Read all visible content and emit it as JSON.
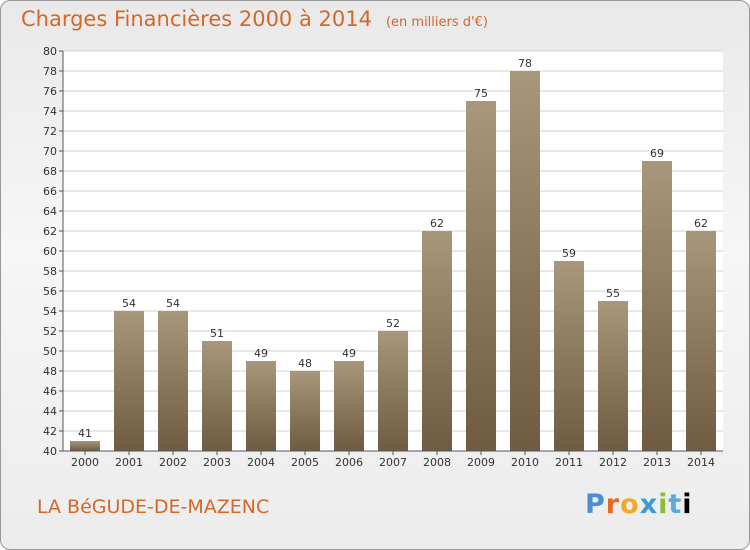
{
  "header": {
    "title": "Charges Financières 2000 à 2014",
    "unit": "(en milliers d'€)"
  },
  "footer": {
    "city": "LA BéGUDE-DE-MAZENC",
    "logo": "Proxiti"
  },
  "colors": {
    "title": "#d4682a",
    "bar_top": "#a8977b",
    "bar_bottom": "#6e5b41",
    "grid": "#d0d0d0"
  },
  "chart_data": {
    "type": "bar",
    "title": "Charges Financières 2000 à 2014",
    "subtitle": "(en milliers d'€)",
    "xlabel": "",
    "ylabel": "",
    "categories": [
      "2000",
      "2001",
      "2002",
      "2003",
      "2004",
      "2005",
      "2006",
      "2007",
      "2008",
      "2009",
      "2010",
      "2011",
      "2012",
      "2013",
      "2014"
    ],
    "values": [
      41,
      54,
      54,
      51,
      49,
      48,
      49,
      52,
      62,
      75,
      78,
      59,
      55,
      69,
      62
    ],
    "ylim": [
      40,
      80
    ],
    "yticks": [
      40,
      42,
      44,
      46,
      48,
      50,
      52,
      54,
      56,
      58,
      60,
      62,
      64,
      66,
      68,
      70,
      72,
      74,
      76,
      78,
      80
    ],
    "grid": true,
    "data_labels": true
  }
}
